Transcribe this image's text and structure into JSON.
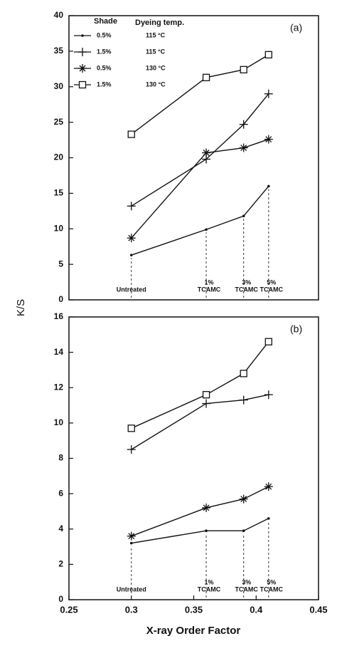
{
  "y_label": "K/S",
  "x_label": "X-ray Order Factor",
  "legend_headers": [
    "Shade",
    "Dyeing temp."
  ],
  "chart_data": [
    {
      "type": "line",
      "panel": "(a)",
      "x": [
        0.3,
        0.36,
        0.39,
        0.41
      ],
      "xlim": [
        0.25,
        0.45
      ],
      "ylim": [
        0,
        40
      ],
      "yticks": [
        0,
        5,
        10,
        15,
        20,
        25,
        30,
        35,
        40
      ],
      "annotations": [
        [
          "Untreated"
        ],
        [
          "1%",
          "TCAMC"
        ],
        [
          "3%",
          "TCAMC"
        ],
        [
          "5%",
          "TCAMC"
        ]
      ],
      "series": [
        {
          "name": "0.5%",
          "temp": "115 °C",
          "marker": "dot",
          "color": "#111",
          "values": [
            6.3,
            9.9,
            11.8,
            16.0
          ]
        },
        {
          "name": "1.5%",
          "temp": "115 °C",
          "marker": "plus",
          "color": "#111",
          "values": [
            13.2,
            19.8,
            24.7,
            29.0
          ]
        },
        {
          "name": "0.5%",
          "temp": "130 °C",
          "marker": "star",
          "color": "#111",
          "values": [
            8.7,
            20.7,
            21.4,
            22.6
          ]
        },
        {
          "name": "1.5%",
          "temp": "130 °C",
          "marker": "square",
          "color": "#111",
          "values": [
            23.3,
            31.3,
            32.4,
            34.5
          ]
        }
      ]
    },
    {
      "type": "line",
      "panel": "(b)",
      "x": [
        0.3,
        0.36,
        0.39,
        0.41
      ],
      "xlim": [
        0.25,
        0.45
      ],
      "xticks": [
        0.25,
        0.3,
        0.35,
        0.4,
        0.45
      ],
      "ylim": [
        0,
        16
      ],
      "yticks": [
        0,
        2,
        4,
        6,
        8,
        10,
        12,
        14,
        16
      ],
      "annotations": [
        [
          "Untreated"
        ],
        [
          "1%",
          "TCAMC"
        ],
        [
          "3%",
          "TCAMC"
        ],
        [
          "5%",
          "TCAMC"
        ]
      ],
      "series": [
        {
          "marker": "dot",
          "color": "#111",
          "values": [
            3.2,
            3.9,
            3.9,
            4.6
          ]
        },
        {
          "marker": "plus",
          "color": "#111",
          "values": [
            8.5,
            11.1,
            11.3,
            11.6
          ]
        },
        {
          "marker": "star",
          "color": "#111",
          "values": [
            3.6,
            5.2,
            5.7,
            6.4
          ]
        },
        {
          "marker": "square",
          "color": "#111",
          "values": [
            9.7,
            11.6,
            12.8,
            14.6
          ]
        }
      ]
    }
  ]
}
